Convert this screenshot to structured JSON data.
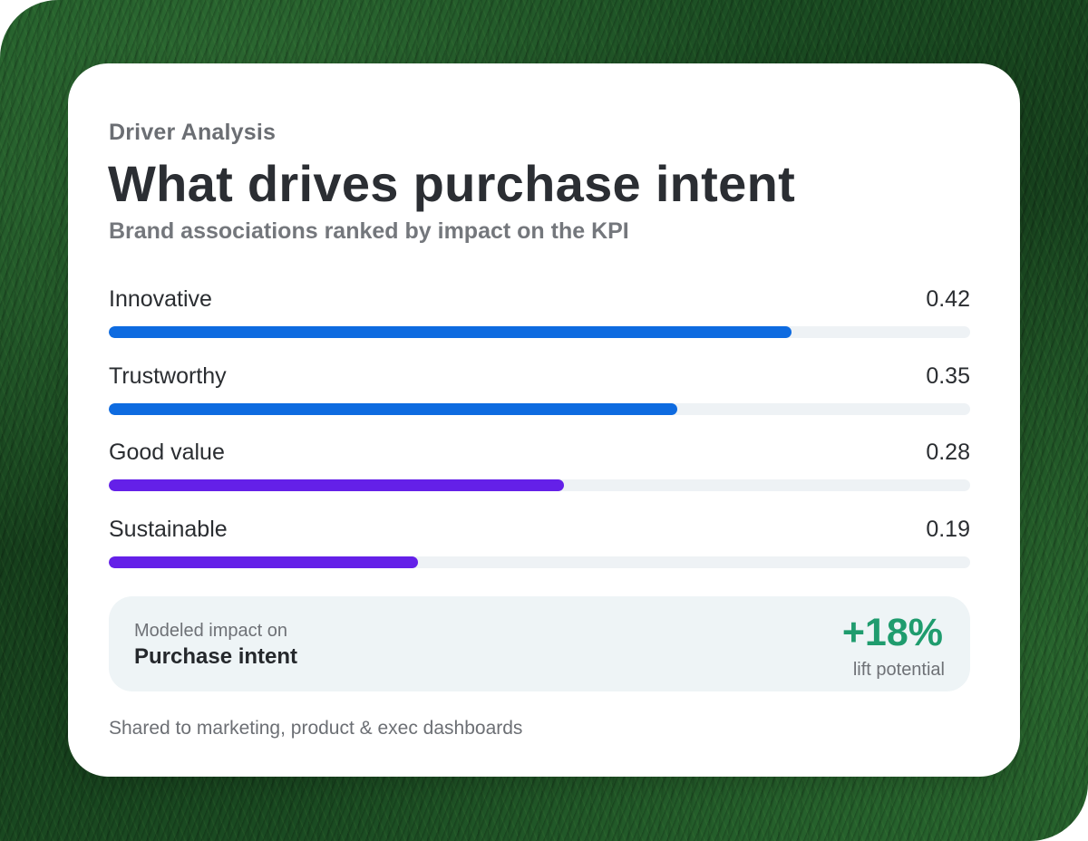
{
  "header": {
    "eyebrow": "Driver Analysis",
    "title": "What drives purchase intent",
    "subtitle": "Brand associations ranked by impact on the KPI"
  },
  "chart_data": {
    "type": "bar",
    "orientation": "horizontal",
    "categories": [
      "Innovative",
      "Trustworthy",
      "Good value",
      "Sustainable"
    ],
    "values": [
      0.42,
      0.35,
      0.28,
      0.19
    ],
    "value_labels": [
      "0.42",
      "0.35",
      "0.28",
      "0.19"
    ],
    "xlim": [
      0,
      0.53
    ],
    "grid": false,
    "colors": [
      "#0e6be0",
      "#0e6be0",
      "#6420e8",
      "#6420e8"
    ],
    "track_color": "#eef2f5"
  },
  "impact": {
    "caption": "Modeled impact on",
    "kpi": "Purchase intent",
    "lift": "+18%",
    "lift_caption": "lift potential",
    "accent_color": "#1f9c6e"
  },
  "footer": {
    "text": "Shared to marketing, product & exec dashboards"
  }
}
